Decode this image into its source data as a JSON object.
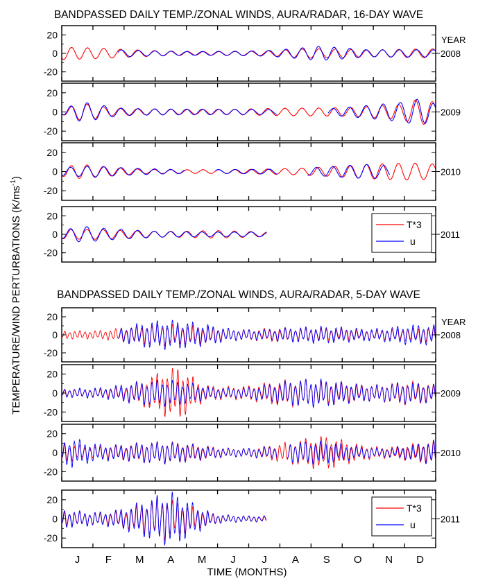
{
  "figure": {
    "ylabel": "TEMPERATURE/WIND PERTURBATIONS (K/ms",
    "ylabel_sup": "-1",
    "ylabel_close": ")",
    "xlabel": "TIME (MONTHS)",
    "months": [
      "J",
      "F",
      "M",
      "A",
      "M",
      "J",
      "J",
      "A",
      "S",
      "O",
      "N",
      "D"
    ],
    "year_header": "YEAR",
    "legend": {
      "t_label": "T*3",
      "u_label": "u"
    },
    "colors": {
      "temperature": "#ff0000",
      "wind": "#0000ff",
      "axes": "#000000"
    }
  },
  "chart_data": [
    {
      "type": "line",
      "title": "BANDPASSED DAILY TEMP./ZONAL WINDS, AURA/RADAR, 16-DAY WAVE",
      "period_days": 16,
      "x_unit": "day of year",
      "xlim": [
        0,
        365
      ],
      "ylim": [
        -30,
        30
      ],
      "yticks": [
        20,
        0,
        -20
      ],
      "panels": [
        {
          "year": "2008",
          "series": [
            {
              "name": "T*3",
              "color": "#ff0000",
              "x_range": [
                0,
                365
              ],
              "envelope": [
                [
                  0,
                  8
                ],
                [
                  40,
                  8
                ],
                [
                  80,
                  6
                ],
                [
                  130,
                  4
                ],
                [
                  190,
                  4
                ],
                [
                  240,
                  7
                ],
                [
                  300,
                  4
                ],
                [
                  365,
                  5
                ]
              ]
            },
            {
              "name": "u",
              "color": "#0000ff",
              "x_range": [
                55,
                365
              ],
              "envelope": [
                [
                  55,
                  6
                ],
                [
                  120,
                  4
                ],
                [
                  200,
                  5
                ],
                [
                  250,
                  10
                ],
                [
                  300,
                  4
                ],
                [
                  365,
                  4
                ]
              ]
            }
          ]
        },
        {
          "year": "2009",
          "series": [
            {
              "name": "T*3",
              "color": "#ff0000",
              "x_range": [
                0,
                365
              ],
              "envelope": [
                [
                  0,
                  3
                ],
                [
                  20,
                  12
                ],
                [
                  50,
                  6
                ],
                [
                  140,
                  5
                ],
                [
                  200,
                  6
                ],
                [
                  280,
                  5
                ],
                [
                  330,
                  8
                ],
                [
                  350,
                  14
                ],
                [
                  365,
                  10
                ]
              ]
            },
            {
              "name": "u",
              "color": "#0000ff",
              "x_range": [
                0,
                210
              ],
              "envelope": [
                [
                  0,
                  3
                ],
                [
                  20,
                  14
                ],
                [
                  60,
                  6
                ],
                [
                  140,
                  6
                ],
                [
                  210,
                  4
                ]
              ]
            },
            {
              "name": "u",
              "color": "#0000ff",
              "x_range": [
                260,
                365
              ],
              "envelope": [
                [
                  260,
                  4
                ],
                [
                  330,
                  10
                ],
                [
                  350,
                  14
                ],
                [
                  365,
                  8
                ]
              ]
            }
          ]
        },
        {
          "year": "2010",
          "series": [
            {
              "name": "T*3",
              "color": "#ff0000",
              "x_range": [
                0,
                365
              ],
              "envelope": [
                [
                  0,
                  6
                ],
                [
                  20,
                  10
                ],
                [
                  80,
                  4
                ],
                [
                  180,
                  4
                ],
                [
                  240,
                  5
                ],
                [
                  300,
                  8
                ],
                [
                  340,
                  9
                ],
                [
                  365,
                  8
                ]
              ]
            },
            {
              "name": "u",
              "color": "#0000ff",
              "x_range": [
                0,
                120
              ],
              "envelope": [
                [
                  0,
                  5
                ],
                [
                  30,
                  8
                ],
                [
                  120,
                  4
                ]
              ]
            },
            {
              "name": "u",
              "color": "#0000ff",
              "x_range": [
                150,
                210
              ],
              "envelope": [
                [
                  150,
                  4
                ],
                [
                  210,
                  4
                ]
              ]
            },
            {
              "name": "u",
              "color": "#0000ff",
              "x_range": [
                240,
                320
              ],
              "envelope": [
                [
                  240,
                  5
                ],
                [
                  300,
                  8
                ],
                [
                  320,
                  6
                ]
              ]
            }
          ]
        },
        {
          "year": "2011",
          "series": [
            {
              "name": "T*3",
              "color": "#ff0000",
              "x_range": [
                0,
                200
              ],
              "envelope": [
                [
                  0,
                  6
                ],
                [
                  30,
                  8
                ],
                [
                  100,
                  6
                ],
                [
                  150,
                  8
                ],
                [
                  200,
                  4
                ]
              ]
            },
            {
              "name": "u",
              "color": "#0000ff",
              "x_range": [
                0,
                200
              ],
              "envelope": [
                [
                  0,
                  5
                ],
                [
                  20,
                  12
                ],
                [
                  40,
                  10
                ],
                [
                  100,
                  6
                ],
                [
                  200,
                  4
                ]
              ]
            }
          ],
          "legend": true
        }
      ]
    },
    {
      "type": "line",
      "title": "BANDPASSED DAILY TEMP./ZONAL WINDS, AURA/RADAR, 5-DAY WAVE",
      "period_days": 5,
      "x_unit": "day of year",
      "xlim": [
        0,
        365
      ],
      "ylim": [
        -30,
        30
      ],
      "yticks": [
        20,
        0,
        -20
      ],
      "panels": [
        {
          "year": "2008",
          "series": [
            {
              "name": "T*3",
              "color": "#ff0000",
              "x_range": [
                0,
                365
              ],
              "envelope": [
                [
                  0,
                  5
                ],
                [
                  30,
                  8
                ],
                [
                  60,
                  12
                ],
                [
                  120,
                  10
                ],
                [
                  150,
                  12
                ],
                [
                  200,
                  10
                ],
                [
                  240,
                  6
                ],
                [
                  280,
                  8
                ],
                [
                  320,
                  10
                ],
                [
                  365,
                  8
                ]
              ]
            },
            {
              "name": "u",
              "color": "#0000ff",
              "x_range": [
                55,
                365
              ],
              "envelope": [
                [
                  55,
                  12
                ],
                [
                  80,
                  15
                ],
                [
                  150,
                  14
                ],
                [
                  200,
                  8
                ],
                [
                  240,
                  8
                ],
                [
                  300,
                  12
                ],
                [
                  330,
                  15
                ],
                [
                  365,
                  10
                ]
              ]
            }
          ]
        },
        {
          "year": "2009",
          "series": [
            {
              "name": "T*3",
              "color": "#ff0000",
              "x_range": [
                0,
                365
              ],
              "envelope": [
                [
                  0,
                  5
                ],
                [
                  60,
                  10
                ],
                [
                  115,
                  26
                ],
                [
                  140,
                  10
                ],
                [
                  200,
                  15
                ],
                [
                  260,
                  12
                ],
                [
                  330,
                  18
                ],
                [
                  365,
                  8
                ]
              ]
            },
            {
              "name": "u",
              "color": "#0000ff",
              "x_range": [
                0,
                365
              ],
              "envelope": [
                [
                  0,
                  5
                ],
                [
                  60,
                  14
                ],
                [
                  115,
                  12
                ],
                [
                  150,
                  8
                ],
                [
                  200,
                  12
                ],
                [
                  260,
                  14
                ],
                [
                  330,
                  16
                ],
                [
                  365,
                  8
                ]
              ]
            }
          ]
        },
        {
          "year": "2010",
          "series": [
            {
              "name": "T*3",
              "color": "#ff0000",
              "x_range": [
                0,
                365
              ],
              "envelope": [
                [
                  0,
                  12
                ],
                [
                  60,
                  12
                ],
                [
                  120,
                  10
                ],
                [
                  180,
                  8
                ],
                [
                  230,
                  12
                ],
                [
                  260,
                  18
                ],
                [
                  320,
                  10
                ],
                [
                  365,
                  12
                ]
              ]
            },
            {
              "name": "u",
              "color": "#0000ff",
              "x_range": [
                0,
                210
              ],
              "envelope": [
                [
                  0,
                  12
                ],
                [
                  10,
                  22
                ],
                [
                  60,
                  12
                ],
                [
                  150,
                  8
                ],
                [
                  210,
                  8
                ]
              ]
            },
            {
              "name": "u",
              "color": "#0000ff",
              "x_range": [
                220,
                365
              ],
              "envelope": [
                [
                  220,
                  10
                ],
                [
                  270,
                  12
                ],
                [
                  320,
                  8
                ],
                [
                  365,
                  12
                ]
              ]
            }
          ]
        },
        {
          "year": "2011",
          "series": [
            {
              "name": "T*3",
              "color": "#ff0000",
              "x_range": [
                0,
                200
              ],
              "envelope": [
                [
                  0,
                  10
                ],
                [
                  50,
                  12
                ],
                [
                  100,
                  20
                ],
                [
                  150,
                  8
                ],
                [
                  200,
                  4
                ]
              ]
            },
            {
              "name": "u",
              "color": "#0000ff",
              "x_range": [
                0,
                200
              ],
              "envelope": [
                [
                  0,
                  12
                ],
                [
                  50,
                  14
                ],
                [
                  110,
                  26
                ],
                [
                  150,
                  8
                ],
                [
                  200,
                  4
                ]
              ]
            }
          ],
          "legend": true
        }
      ]
    }
  ]
}
